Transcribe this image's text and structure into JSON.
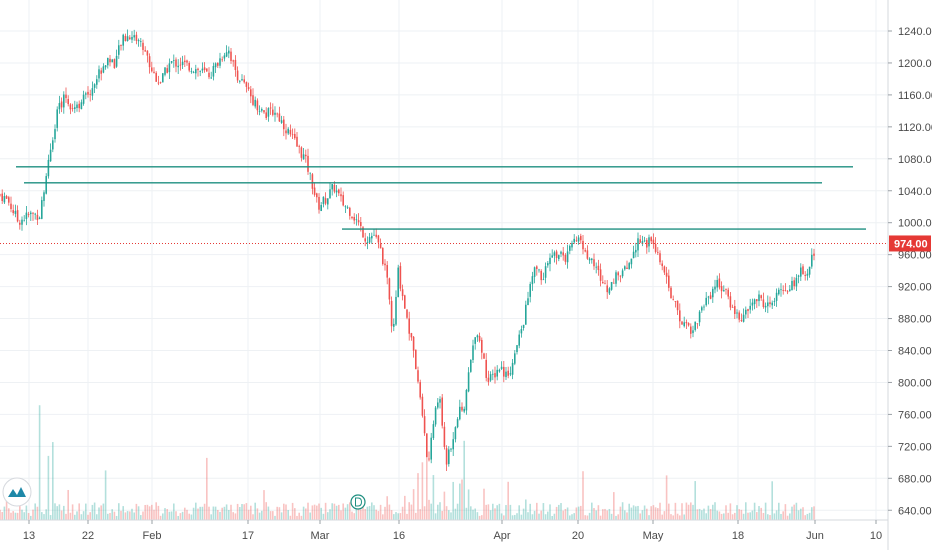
{
  "chart_data": {
    "type": "candlestick",
    "y_axis": {
      "side": "right",
      "ticks": [
        "1240.00",
        "1200.00",
        "1160.00",
        "1120.00",
        "1080.00",
        "1040.00",
        "1000.00",
        "960.00",
        "920.00",
        "880.00",
        "840.00",
        "800.00",
        "760.00",
        "720.00",
        "680.00",
        "640.00"
      ],
      "range": [
        630,
        1265
      ]
    },
    "x_axis": {
      "ticks": [
        "13",
        "22",
        "Feb",
        "17",
        "Mar",
        "16",
        "Apr",
        "20",
        "May",
        "18",
        "Jun",
        "10"
      ]
    },
    "last_price": {
      "label": "974.00",
      "value": 974
    },
    "grid": true,
    "colors": {
      "up": "#26a69a",
      "down": "#ef5350",
      "hline": "#1e8f80",
      "price_line": "#e53935",
      "grid": "#eef1f4"
    },
    "horizontal_lines": [
      1070,
      1050,
      992
    ],
    "price_series": [
      [
        0,
        1035
      ],
      [
        8,
        1028
      ],
      [
        18,
        1002
      ],
      [
        30,
        1010
      ],
      [
        40,
        1010
      ],
      [
        46,
        1055
      ],
      [
        52,
        1105
      ],
      [
        58,
        1140
      ],
      [
        65,
        1160
      ],
      [
        72,
        1145
      ],
      [
        80,
        1150
      ],
      [
        90,
        1165
      ],
      [
        100,
        1190
      ],
      [
        108,
        1205
      ],
      [
        115,
        1200
      ],
      [
        122,
        1228
      ],
      [
        130,
        1235
      ],
      [
        138,
        1230
      ],
      [
        145,
        1215
      ],
      [
        152,
        1190
      ],
      [
        160,
        1175
      ],
      [
        170,
        1200
      ],
      [
        180,
        1200
      ],
      [
        190,
        1195
      ],
      [
        200,
        1190
      ],
      [
        210,
        1185
      ],
      [
        220,
        1205
      ],
      [
        228,
        1220
      ],
      [
        235,
        1190
      ],
      [
        245,
        1170
      ],
      [
        255,
        1150
      ],
      [
        265,
        1135
      ],
      [
        275,
        1140
      ],
      [
        285,
        1120
      ],
      [
        295,
        1100
      ],
      [
        305,
        1080
      ],
      [
        312,
        1050
      ],
      [
        318,
        1020
      ],
      [
        326,
        1030
      ],
      [
        334,
        1045
      ],
      [
        342,
        1025
      ],
      [
        350,
        1015
      ],
      [
        358,
        1000
      ],
      [
        366,
        980
      ],
      [
        374,
        985
      ],
      [
        382,
        960
      ],
      [
        388,
        920
      ],
      [
        393,
        855
      ],
      [
        398,
        940
      ],
      [
        404,
        900
      ],
      [
        410,
        860
      ],
      [
        416,
        820
      ],
      [
        422,
        760
      ],
      [
        428,
        700
      ],
      [
        434,
        760
      ],
      [
        440,
        780
      ],
      [
        446,
        700
      ],
      [
        452,
        720
      ],
      [
        458,
        760
      ],
      [
        464,
        770
      ],
      [
        470,
        820
      ],
      [
        476,
        870
      ],
      [
        482,
        840
      ],
      [
        488,
        800
      ],
      [
        494,
        810
      ],
      [
        500,
        820
      ],
      [
        506,
        810
      ],
      [
        512,
        820
      ],
      [
        518,
        850
      ],
      [
        524,
        880
      ],
      [
        530,
        920
      ],
      [
        536,
        945
      ],
      [
        542,
        930
      ],
      [
        548,
        950
      ],
      [
        554,
        960
      ],
      [
        560,
        960
      ],
      [
        566,
        955
      ],
      [
        572,
        970
      ],
      [
        578,
        985
      ],
      [
        584,
        965
      ],
      [
        590,
        955
      ],
      [
        596,
        945
      ],
      [
        602,
        925
      ],
      [
        608,
        915
      ],
      [
        614,
        930
      ],
      [
        620,
        935
      ],
      [
        626,
        940
      ],
      [
        632,
        960
      ],
      [
        638,
        980
      ],
      [
        644,
        975
      ],
      [
        650,
        975
      ],
      [
        656,
        965
      ],
      [
        662,
        945
      ],
      [
        668,
        920
      ],
      [
        674,
        900
      ],
      [
        680,
        875
      ],
      [
        686,
        875
      ],
      [
        692,
        865
      ],
      [
        698,
        880
      ],
      [
        704,
        900
      ],
      [
        710,
        910
      ],
      [
        716,
        925
      ],
      [
        722,
        920
      ],
      [
        728,
        905
      ],
      [
        734,
        890
      ],
      [
        740,
        880
      ],
      [
        746,
        885
      ],
      [
        752,
        900
      ],
      [
        758,
        905
      ],
      [
        764,
        900
      ],
      [
        770,
        895
      ],
      [
        776,
        905
      ],
      [
        782,
        920
      ],
      [
        788,
        915
      ],
      [
        794,
        925
      ],
      [
        800,
        940
      ],
      [
        806,
        930
      ],
      [
        812,
        955
      ],
      [
        816,
        974
      ]
    ]
  }
}
